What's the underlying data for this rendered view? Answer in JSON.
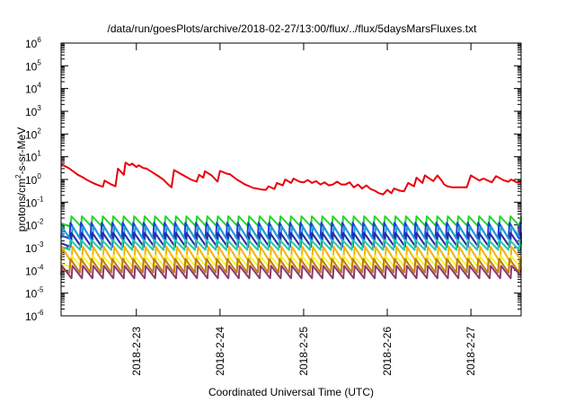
{
  "chart_data": {
    "type": "line",
    "title": "/data/run/goesPlots/archive/2018-02-27/13:00/flux/../flux/5daysMarsFluxes.txt",
    "xlabel": "Coordinated Universal Time (UTC)",
    "ylabel_main": "protons/cm",
    "ylabel_sup": "2",
    "ylabel_rest": "-s-sr-MeV",
    "yscale": "log",
    "ylim_exp": [
      -6,
      6
    ],
    "y_tick_base": "10",
    "y_tick_exponents": [
      "-6",
      "-5",
      "-4",
      "-3",
      "-2",
      "-1",
      "0",
      "1",
      "2",
      "3",
      "4",
      "5",
      "6"
    ],
    "xlim_days": [
      22.1,
      27.6
    ],
    "x_ticks": [
      {
        "label": "2018-2-23",
        "day": 23
      },
      {
        "label": "2018-2-24",
        "day": 24
      },
      {
        "label": "2018-2-25",
        "day": 25
      },
      {
        "label": "2018-2-26",
        "day": 26
      },
      {
        "label": "2018-2-27",
        "day": 27
      }
    ],
    "sawtooth_period_days": 0.125,
    "series": [
      {
        "color": "#e8000b",
        "kind": "trace",
        "points": [
          [
            22.1,
            4.5
          ],
          [
            22.15,
            3.8
          ],
          [
            22.2,
            3.0
          ],
          [
            22.25,
            2.2
          ],
          [
            22.3,
            1.6
          ],
          [
            22.35,
            1.3
          ],
          [
            22.4,
            1.0
          ],
          [
            22.45,
            0.8
          ],
          [
            22.5,
            0.65
          ],
          [
            22.55,
            0.55
          ],
          [
            22.6,
            0.48
          ],
          [
            22.62,
            0.9
          ],
          [
            22.7,
            0.6
          ],
          [
            22.75,
            0.5
          ],
          [
            22.78,
            3.0
          ],
          [
            22.85,
            1.6
          ],
          [
            22.87,
            5.5
          ],
          [
            22.92,
            4.2
          ],
          [
            22.95,
            5.0
          ],
          [
            23.0,
            3.5
          ],
          [
            23.03,
            4.2
          ],
          [
            23.08,
            3.2
          ],
          [
            23.12,
            3.0
          ],
          [
            23.18,
            2.2
          ],
          [
            23.25,
            1.5
          ],
          [
            23.32,
            1.0
          ],
          [
            23.38,
            0.6
          ],
          [
            23.42,
            0.45
          ],
          [
            23.45,
            2.6
          ],
          [
            23.55,
            1.6
          ],
          [
            23.65,
            1.0
          ],
          [
            23.72,
            0.8
          ],
          [
            23.75,
            1.6
          ],
          [
            23.8,
            1.2
          ],
          [
            23.82,
            2.3
          ],
          [
            23.9,
            1.5
          ],
          [
            23.97,
            0.8
          ],
          [
            24.0,
            2.4
          ],
          [
            24.08,
            1.8
          ],
          [
            24.12,
            1.7
          ],
          [
            24.2,
            1.0
          ],
          [
            24.3,
            0.6
          ],
          [
            24.4,
            0.42
          ],
          [
            24.5,
            0.36
          ],
          [
            24.55,
            0.35
          ],
          [
            24.58,
            0.5
          ],
          [
            24.65,
            0.38
          ],
          [
            24.68,
            0.7
          ],
          [
            24.75,
            0.55
          ],
          [
            24.78,
            1.0
          ],
          [
            24.85,
            0.7
          ],
          [
            24.88,
            1.1
          ],
          [
            24.95,
            0.8
          ],
          [
            25.0,
            0.75
          ],
          [
            25.05,
            0.95
          ],
          [
            25.1,
            0.7
          ],
          [
            25.15,
            0.85
          ],
          [
            25.2,
            0.6
          ],
          [
            25.25,
            0.75
          ],
          [
            25.3,
            0.55
          ],
          [
            25.35,
            0.6
          ],
          [
            25.4,
            0.8
          ],
          [
            25.45,
            0.6
          ],
          [
            25.5,
            0.6
          ],
          [
            25.55,
            0.75
          ],
          [
            25.6,
            0.45
          ],
          [
            25.65,
            0.6
          ],
          [
            25.7,
            0.4
          ],
          [
            25.75,
            0.55
          ],
          [
            25.8,
            0.38
          ],
          [
            25.85,
            0.32
          ],
          [
            25.9,
            0.25
          ],
          [
            25.95,
            0.22
          ],
          [
            26.0,
            0.35
          ],
          [
            26.05,
            0.25
          ],
          [
            26.08,
            0.4
          ],
          [
            26.15,
            0.32
          ],
          [
            26.2,
            0.3
          ],
          [
            26.25,
            0.7
          ],
          [
            26.32,
            0.5
          ],
          [
            26.35,
            1.2
          ],
          [
            26.42,
            0.7
          ],
          [
            26.45,
            1.5
          ],
          [
            26.55,
            0.85
          ],
          [
            26.6,
            1.5
          ],
          [
            26.65,
            0.9
          ],
          [
            26.68,
            0.6
          ],
          [
            26.72,
            0.5
          ],
          [
            26.78,
            0.45
          ],
          [
            26.85,
            0.45
          ],
          [
            26.95,
            0.45
          ],
          [
            27.0,
            1.5
          ],
          [
            27.1,
            0.9
          ],
          [
            27.15,
            1.1
          ],
          [
            27.25,
            0.75
          ],
          [
            27.3,
            1.4
          ],
          [
            27.4,
            0.9
          ],
          [
            27.45,
            0.8
          ],
          [
            27.48,
            1.0
          ],
          [
            27.55,
            0.75
          ],
          [
            27.6,
            0.7
          ]
        ]
      },
      {
        "color": "#23d62a",
        "kind": "sawtooth",
        "peak": 0.024,
        "trough": 0.0085
      },
      {
        "color": "#1f3fdc",
        "kind": "sawtooth",
        "peak": 0.0125,
        "trough": 0.0025
      },
      {
        "color": "#1ba0d6",
        "kind": "sawtooth",
        "peak": 0.0085,
        "trough": 0.0019
      },
      {
        "color": "#2a2aa8",
        "kind": "sawtooth",
        "peak": 0.0045,
        "trough": 0.0011
      },
      {
        "color": "#26c9a6",
        "kind": "sawtooth",
        "peak": 0.0022,
        "trough": 0.0008
      },
      {
        "color": "#f2b20c",
        "kind": "sawtooth",
        "peak": 0.0011,
        "trough": 0.00022
      },
      {
        "color": "#f5f52a",
        "kind": "sawtooth",
        "peak": 0.00045,
        "trough": 0.00014
      },
      {
        "color": "#c17a1a",
        "kind": "sawtooth",
        "peak": 0.00032,
        "trough": 8e-05
      },
      {
        "color": "#8b3a6e",
        "kind": "sawtooth",
        "peak": 0.00016,
        "trough": 4.5e-05
      }
    ]
  }
}
